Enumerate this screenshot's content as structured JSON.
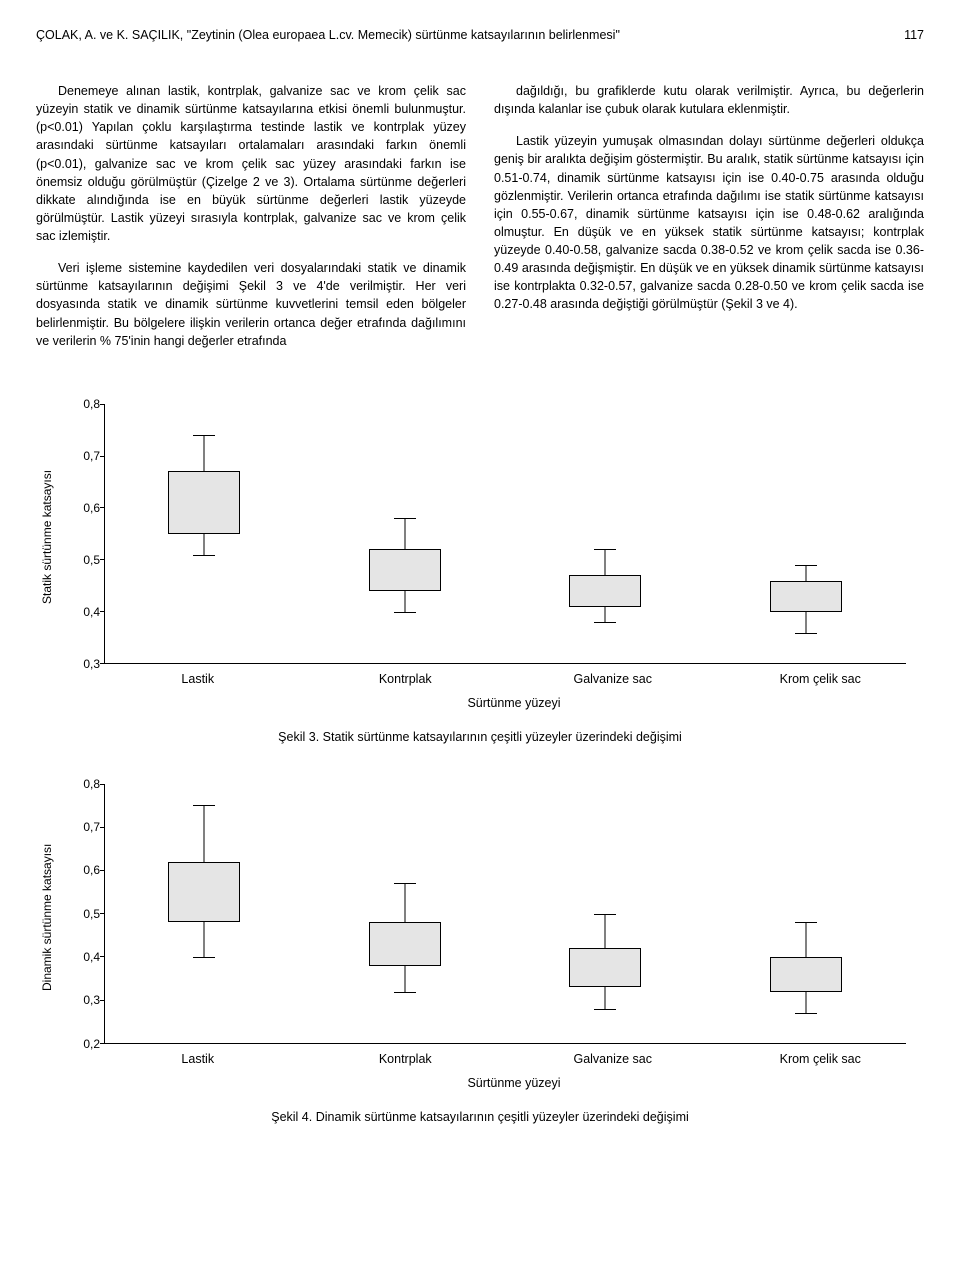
{
  "header": {
    "citation": "ÇOLAK, A. ve K. SAÇILIK, \"Zeytinin (Olea europaea L.cv. Memecik) sürtünme katsayılarının belirlenmesi\"",
    "page": "117"
  },
  "body": {
    "left": [
      "Denemeye alınan lastik, kontrplak, galvanize sac ve krom çelik sac yüzeyin statik ve dinamik sürtünme katsayılarına etkisi önemli bulunmuştur. (p<0.01) Yapılan çoklu karşılaştırma testinde lastik ve kontrplak yüzey arasındaki sürtünme katsayıları ortalamaları arasındaki farkın önemli (p<0.01), galvanize sac ve krom çelik sac yüzey arasındaki farkın ise önemsiz olduğu görülmüştür (Çizelge 2 ve 3). Ortalama sürtünme değerleri dikkate alındığında ise en büyük sürtünme değerleri lastik yüzeyde görülmüştür. Lastik yüzeyi sırasıyla kontrplak, galvanize sac ve krom çelik sac izlemiştir.",
      "Veri işleme sistemine kaydedilen veri dosyalarındaki statik ve dinamik sürtünme katsayılarının değişimi Şekil 3 ve 4'de verilmiştir. Her veri dosyasında statik ve dinamik sürtünme kuvvetlerini temsil eden bölgeler belirlenmiştir. Bu bölgelere ilişkin verilerin ortanca değer etrafında dağılımını ve verilerin % 75'inin hangi değerler etrafında"
    ],
    "right": [
      "dağıldığı, bu grafiklerde kutu olarak verilmiştir. Ayrıca, bu değerlerin dışında kalanlar ise çubuk olarak kutulara eklenmiştir.",
      "Lastik yüzeyin yumuşak olmasından dolayı sürtünme değerleri oldukça geniş bir aralıkta değişim göstermiştir. Bu aralık, statik sürtünme katsayısı için 0.51-0.74, dinamik sürtünme katsayısı için ise 0.40-0.75 arasında olduğu gözlenmiştir. Verilerin ortanca etrafında dağılımı ise statik sürtünme katsayısı için 0.55-0.67, dinamik sürtünme katsayısı için ise 0.48-0.62 aralığında olmuştur. En düşük ve en yüksek statik sürtünme katsayısı; kontrplak yüzeyde 0.40-0.58, galvanize sacda 0.38-0.52 ve krom çelik sacda ise 0.36-0.49 arasında değişmiştir. En düşük ve en yüksek dinamik sürtünme katsayısı ise kontrplakta 0.32-0.57, galvanize sacda 0.28-0.50 ve krom çelik sacda ise 0.27-0.48 arasında değiştiği görülmüştür (Şekil 3 ve 4)."
    ]
  },
  "chart3": {
    "type": "boxplot",
    "ylabel": "Statik sürtünme katsayısı",
    "xlabel": "Sürtünme yüzeyi",
    "caption": "Şekil 3. Statik sürtünme katsayılarının çeşitli yüzeyler üzerindeki değişimi",
    "ylim": [
      0.3,
      0.8
    ],
    "yticks": [
      0.3,
      0.4,
      0.5,
      0.6,
      0.7,
      0.8
    ],
    "ytick_labels": [
      "0,3",
      "0,4",
      "0,5",
      "0,6",
      "0,7",
      "0,8"
    ],
    "categories": [
      "Lastik",
      "Kontrplak",
      "Galvanize sac",
      "Krom çelik sac"
    ],
    "boxes": [
      {
        "low": 0.51,
        "q1": 0.55,
        "q3": 0.67,
        "high": 0.74
      },
      {
        "low": 0.4,
        "q1": 0.44,
        "q3": 0.52,
        "high": 0.58
      },
      {
        "low": 0.38,
        "q1": 0.41,
        "q3": 0.47,
        "high": 0.52
      },
      {
        "low": 0.36,
        "q1": 0.4,
        "q3": 0.46,
        "high": 0.49
      }
    ],
    "box_fill": "#e5e5e5",
    "border_color": "#000000",
    "label_fontsize": 12
  },
  "chart4": {
    "type": "boxplot",
    "ylabel": "Dinamik sürtünme katsayısı",
    "xlabel": "Sürtünme yüzeyi",
    "caption": "Şekil 4. Dinamik sürtünme katsayılarının çeşitli yüzeyler üzerindeki değişimi",
    "ylim": [
      0.2,
      0.8
    ],
    "yticks": [
      0.2,
      0.3,
      0.4,
      0.5,
      0.6,
      0.7,
      0.8
    ],
    "ytick_labels": [
      "0,2",
      "0,3",
      "0,4",
      "0,5",
      "0,6",
      "0,7",
      "0,8"
    ],
    "categories": [
      "Lastik",
      "Kontrplak",
      "Galvanize sac",
      "Krom çelik sac"
    ],
    "boxes": [
      {
        "low": 0.4,
        "q1": 0.48,
        "q3": 0.62,
        "high": 0.75
      },
      {
        "low": 0.32,
        "q1": 0.38,
        "q3": 0.48,
        "high": 0.57
      },
      {
        "low": 0.28,
        "q1": 0.33,
        "q3": 0.42,
        "high": 0.5
      },
      {
        "low": 0.27,
        "q1": 0.32,
        "q3": 0.4,
        "high": 0.48
      }
    ],
    "box_fill": "#e5e5e5",
    "border_color": "#000000",
    "label_fontsize": 12
  },
  "colors": {
    "page_bg": "#ffffff",
    "text": "#000000"
  }
}
